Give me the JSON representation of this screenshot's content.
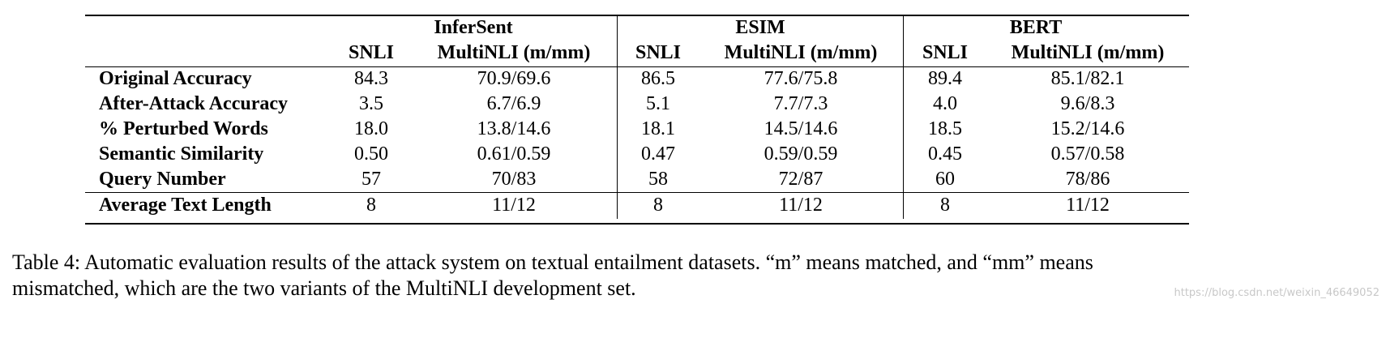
{
  "table": {
    "groups": [
      "InferSent",
      "ESIM",
      "BERT"
    ],
    "columns": [
      "SNLI",
      "MultiNLI (m/mm)",
      "SNLI",
      "MultiNLI (m/mm)",
      "SNLI",
      "MultiNLI (m/mm)"
    ],
    "rows": [
      [
        "Original Accuracy",
        "84.3",
        "70.9/69.6",
        "86.5",
        "77.6/75.8",
        "89.4",
        "85.1/82.1"
      ],
      [
        "After-Attack Accuracy",
        "3.5",
        "6.7/6.9",
        "5.1",
        "7.7/7.3",
        "4.0",
        "9.6/8.3"
      ],
      [
        "% Perturbed Words",
        "18.0",
        "13.8/14.6",
        "18.1",
        "14.5/14.6",
        "18.5",
        "15.2/14.6"
      ],
      [
        "Semantic Similarity",
        "0.50",
        "0.61/0.59",
        "0.47",
        "0.59/0.59",
        "0.45",
        "0.57/0.58"
      ],
      [
        "Query Number",
        "57",
        "70/83",
        "58",
        "72/87",
        "60",
        "78/86"
      ],
      [
        "Average Text Length",
        "8",
        "11/12",
        "8",
        "11/12",
        "8",
        "11/12"
      ]
    ]
  },
  "caption": [
    "Table 4: Automatic evaluation results of the attack system on textual entailment datasets. “m” means matched, and “mm” means",
    "mismatched, which are the two variants of the MultiNLI development set."
  ],
  "watermark": "https://blog.csdn.net/weixin_46649052"
}
